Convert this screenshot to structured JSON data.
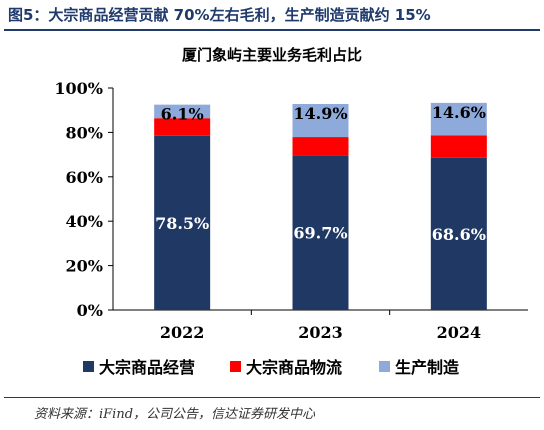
{
  "figure": {
    "caption": "图5：大宗商品经营贡献 70%左右毛利，生产制造贡献约 15%",
    "source": "资料来源：iFind，公司公告，信达证券研发中心"
  },
  "chart_data": {
    "type": "bar",
    "stacked": true,
    "title": "厦门象屿主要业务毛利占比",
    "categories": [
      "2022",
      "2023",
      "2024"
    ],
    "series": [
      {
        "name": "大宗商品经营",
        "color": "#203864",
        "values": [
          78.5,
          69.7,
          68.6
        ],
        "labels": [
          "78.5%",
          "69.7%",
          "68.6%"
        ],
        "label_color": "#ffffff"
      },
      {
        "name": "大宗商品物流",
        "color": "#ff0000",
        "values": [
          7.9,
          8.2,
          10.1
        ],
        "labels": [
          "",
          "",
          ""
        ],
        "label_color": "#000000"
      },
      {
        "name": "生产制造",
        "color": "#8eaadb",
        "values": [
          6.1,
          14.9,
          14.6
        ],
        "labels": [
          "6.1%",
          "14.9%",
          "14.6%"
        ],
        "label_color": "#000000"
      }
    ],
    "ylim": [
      0,
      100
    ],
    "yticks": [
      "0%",
      "20%",
      "40%",
      "60%",
      "80%",
      "100%"
    ],
    "xlabel": "",
    "ylabel": "",
    "grid": false,
    "legend_position": "bottom"
  }
}
